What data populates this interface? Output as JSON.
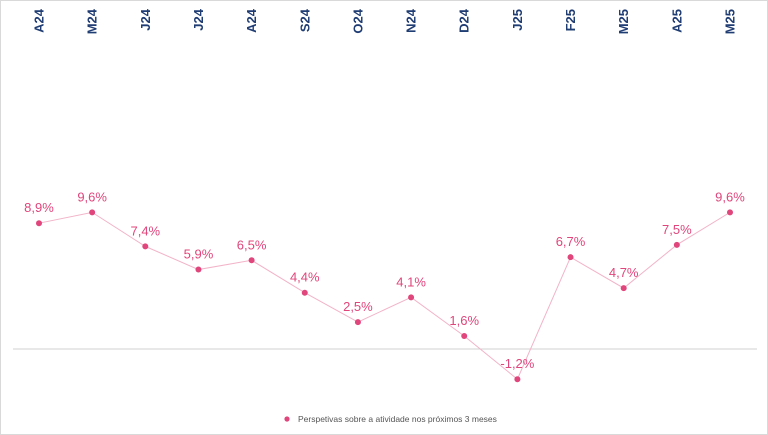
{
  "chart_data": {
    "type": "line",
    "categories": [
      "A24",
      "M24",
      "J24",
      "J24",
      "A24",
      "S24",
      "O24",
      "N24",
      "D24",
      "J25",
      "F25",
      "M25",
      "A25",
      "M25"
    ],
    "series": [
      {
        "name": "Perspetivas sobre a atividade nos próximos 3 meses",
        "values": [
          8.9,
          9.6,
          7.4,
          5.9,
          6.5,
          4.4,
          2.5,
          4.1,
          1.6,
          -1.2,
          6.7,
          4.7,
          7.5,
          9.6
        ],
        "labels": [
          "8,9%",
          "9,6%",
          "7,4%",
          "5,9%",
          "6,5%",
          "4,4%",
          "2,5%",
          "4,1%",
          "1,6%",
          "-1,2%",
          "6,7%",
          "4,7%",
          "7,5%",
          "9,6%"
        ]
      }
    ],
    "title": "",
    "xlabel": "",
    "ylabel": "",
    "grid": false,
    "legend_position": "bottom",
    "colors": {
      "series": "#e0457b",
      "line": "#f2b3c8",
      "category_labels": "#1f3c73",
      "zero_line": "#d0d0d0"
    }
  }
}
